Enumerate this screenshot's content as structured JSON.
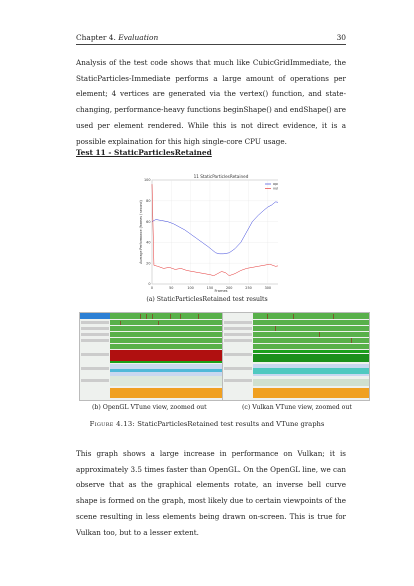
{
  "header": {
    "chapter": "Chapter 4.",
    "chapter_title": "Evaluation",
    "page_number": "30"
  },
  "paragraph1": "Analysis of the test code shows that much like CubicGridImmediate, the StaticParticles-Immediate performs a large amount of operations per element; 4 vertices are generated via the vertex() function, and state-changing, performance-heavy functions beginShape() and endShape() are used per element rendered. While this is not direct evidence, it is a possible explaination for this high single-core CPU usage.",
  "section_heading": "Test 11 - StaticParticlesRetained",
  "chart_data": {
    "type": "line",
    "title": "11 StaticParticlesRetained",
    "xlabel": "Frames",
    "ylabel": "Average Performance (frames / second)",
    "xlim": [
      0,
      360
    ],
    "ylim": [
      0,
      100
    ],
    "x_ticks": [
      "0",
      "50",
      "100",
      "150",
      "200",
      "250",
      "300",
      "350"
    ],
    "y_ticks": [
      "0",
      "20",
      "40",
      "60",
      "80",
      "100"
    ],
    "legend_position": "top-right",
    "series": [
      {
        "name": "opengl",
        "color": "#1f2bd6",
        "x": [
          0,
          10,
          25,
          40,
          55,
          70,
          85,
          100,
          115,
          130,
          145,
          155,
          165,
          175,
          185,
          200,
          215,
          230,
          245,
          260,
          275,
          290,
          300,
          310,
          320,
          335,
          350,
          358
        ],
        "values": [
          60,
          62,
          61,
          60,
          58,
          55,
          52,
          48,
          44,
          40,
          36,
          33,
          30,
          29,
          29,
          30,
          34,
          40,
          50,
          60,
          66,
          71,
          74,
          76,
          79,
          78,
          79,
          80
        ]
      },
      {
        "name": "vulkan",
        "color": "#e01818",
        "x": [
          0,
          5,
          15,
          30,
          45,
          60,
          75,
          90,
          105,
          120,
          135,
          150,
          160,
          170,
          180,
          190,
          200,
          215,
          230,
          245,
          260,
          275,
          290,
          305,
          320,
          335,
          350,
          358
        ],
        "values": [
          96,
          18,
          17,
          15,
          16,
          14,
          15,
          13,
          12,
          11,
          10,
          9,
          8,
          10,
          12,
          11,
          8,
          10,
          13,
          15,
          16,
          17,
          18,
          19,
          17,
          18,
          19,
          18
        ]
      }
    ]
  },
  "caption_a": "(a) StaticParticlesRetained test results",
  "caption_b": "(b) OpenGL VTune view, zoomed out",
  "caption_c": "(c) Vulkan VTune view, zoomed out",
  "figure_label": "Figure 4.13:",
  "figure_caption": "StaticParticlesRetained test results and VTune graphs",
  "paragraph2": "This graph shows a large increase in performance on Vulkan; it is approximately 3.5 times faster than OpenGL. On the OpenGL line, we can observe that as the graphical elements rotate, an inverse bell curve shape is formed on the graph, most likely due to certain viewpoints of the scene resulting in less elements being drawn on-screen. This is true for Vulkan too, but to a lesser extent."
}
